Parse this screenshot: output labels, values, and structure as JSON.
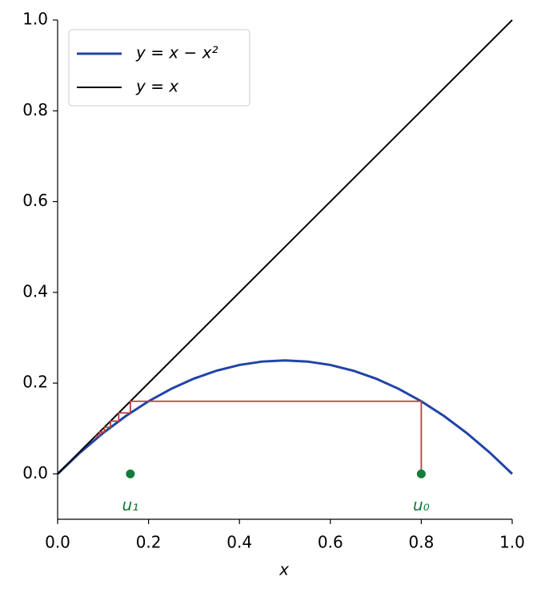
{
  "chart_data": {
    "type": "line",
    "xlabel": "x",
    "xlim": [
      0,
      1
    ],
    "ylim": [
      -0.1,
      1.0
    ],
    "xticks": [
      {
        "value": 0,
        "label": "0.0"
      },
      {
        "value": 0.2,
        "label": "0.2"
      },
      {
        "value": 0.4,
        "label": "0.4"
      },
      {
        "value": 0.6,
        "label": "0.6"
      },
      {
        "value": 0.8,
        "label": "0.8"
      },
      {
        "value": 1,
        "label": "1.0"
      }
    ],
    "yticks": [
      {
        "value": 0,
        "label": "0.0"
      },
      {
        "value": 0.2,
        "label": "0.2"
      },
      {
        "value": 0.4,
        "label": "0.4"
      },
      {
        "value": 0.6,
        "label": "0.6"
      },
      {
        "value": 0.8,
        "label": "0.8"
      },
      {
        "value": 1,
        "label": "1.0"
      }
    ],
    "legend": "upper left",
    "series": [
      {
        "name": "y = x − x²",
        "color": "#2143a8",
        "x": [
          0,
          0.05,
          0.1,
          0.15,
          0.2,
          0.25,
          0.3,
          0.35,
          0.4,
          0.45,
          0.5,
          0.55,
          0.6,
          0.65,
          0.7,
          0.75,
          0.8,
          0.85,
          0.9,
          0.95,
          1
        ],
        "values": [
          0,
          0.0475,
          0.09,
          0.1275,
          0.16,
          0.1875,
          0.21,
          0.2275,
          0.24,
          0.2475,
          0.25,
          0.2475,
          0.24,
          0.2275,
          0.21,
          0.1875,
          0.16,
          0.1275,
          0.09,
          0.0475,
          0
        ]
      },
      {
        "name": "y = x",
        "color": "#000000",
        "x": [
          0,
          1
        ],
        "values": [
          0,
          1
        ]
      },
      {
        "color": "#b5403a",
        "x": [
          0.8,
          0.8,
          0.16,
          0.16,
          0.1344,
          0.1344,
          0.1163,
          0.1163,
          0.1028,
          0.1028,
          0.0922,
          0.0922,
          0.0837
        ],
        "values": [
          0,
          0.16,
          0.16,
          0.1344,
          0.1344,
          0.1163,
          0.1163,
          0.1028,
          0.1028,
          0.0922,
          0.0922,
          0.0837,
          0.0837
        ]
      }
    ],
    "points": {
      "color": "#137c3a",
      "x": [
        0.16,
        0.8
      ],
      "values": [
        0,
        0
      ],
      "labels": [
        "u₁",
        "u₀"
      ]
    }
  }
}
